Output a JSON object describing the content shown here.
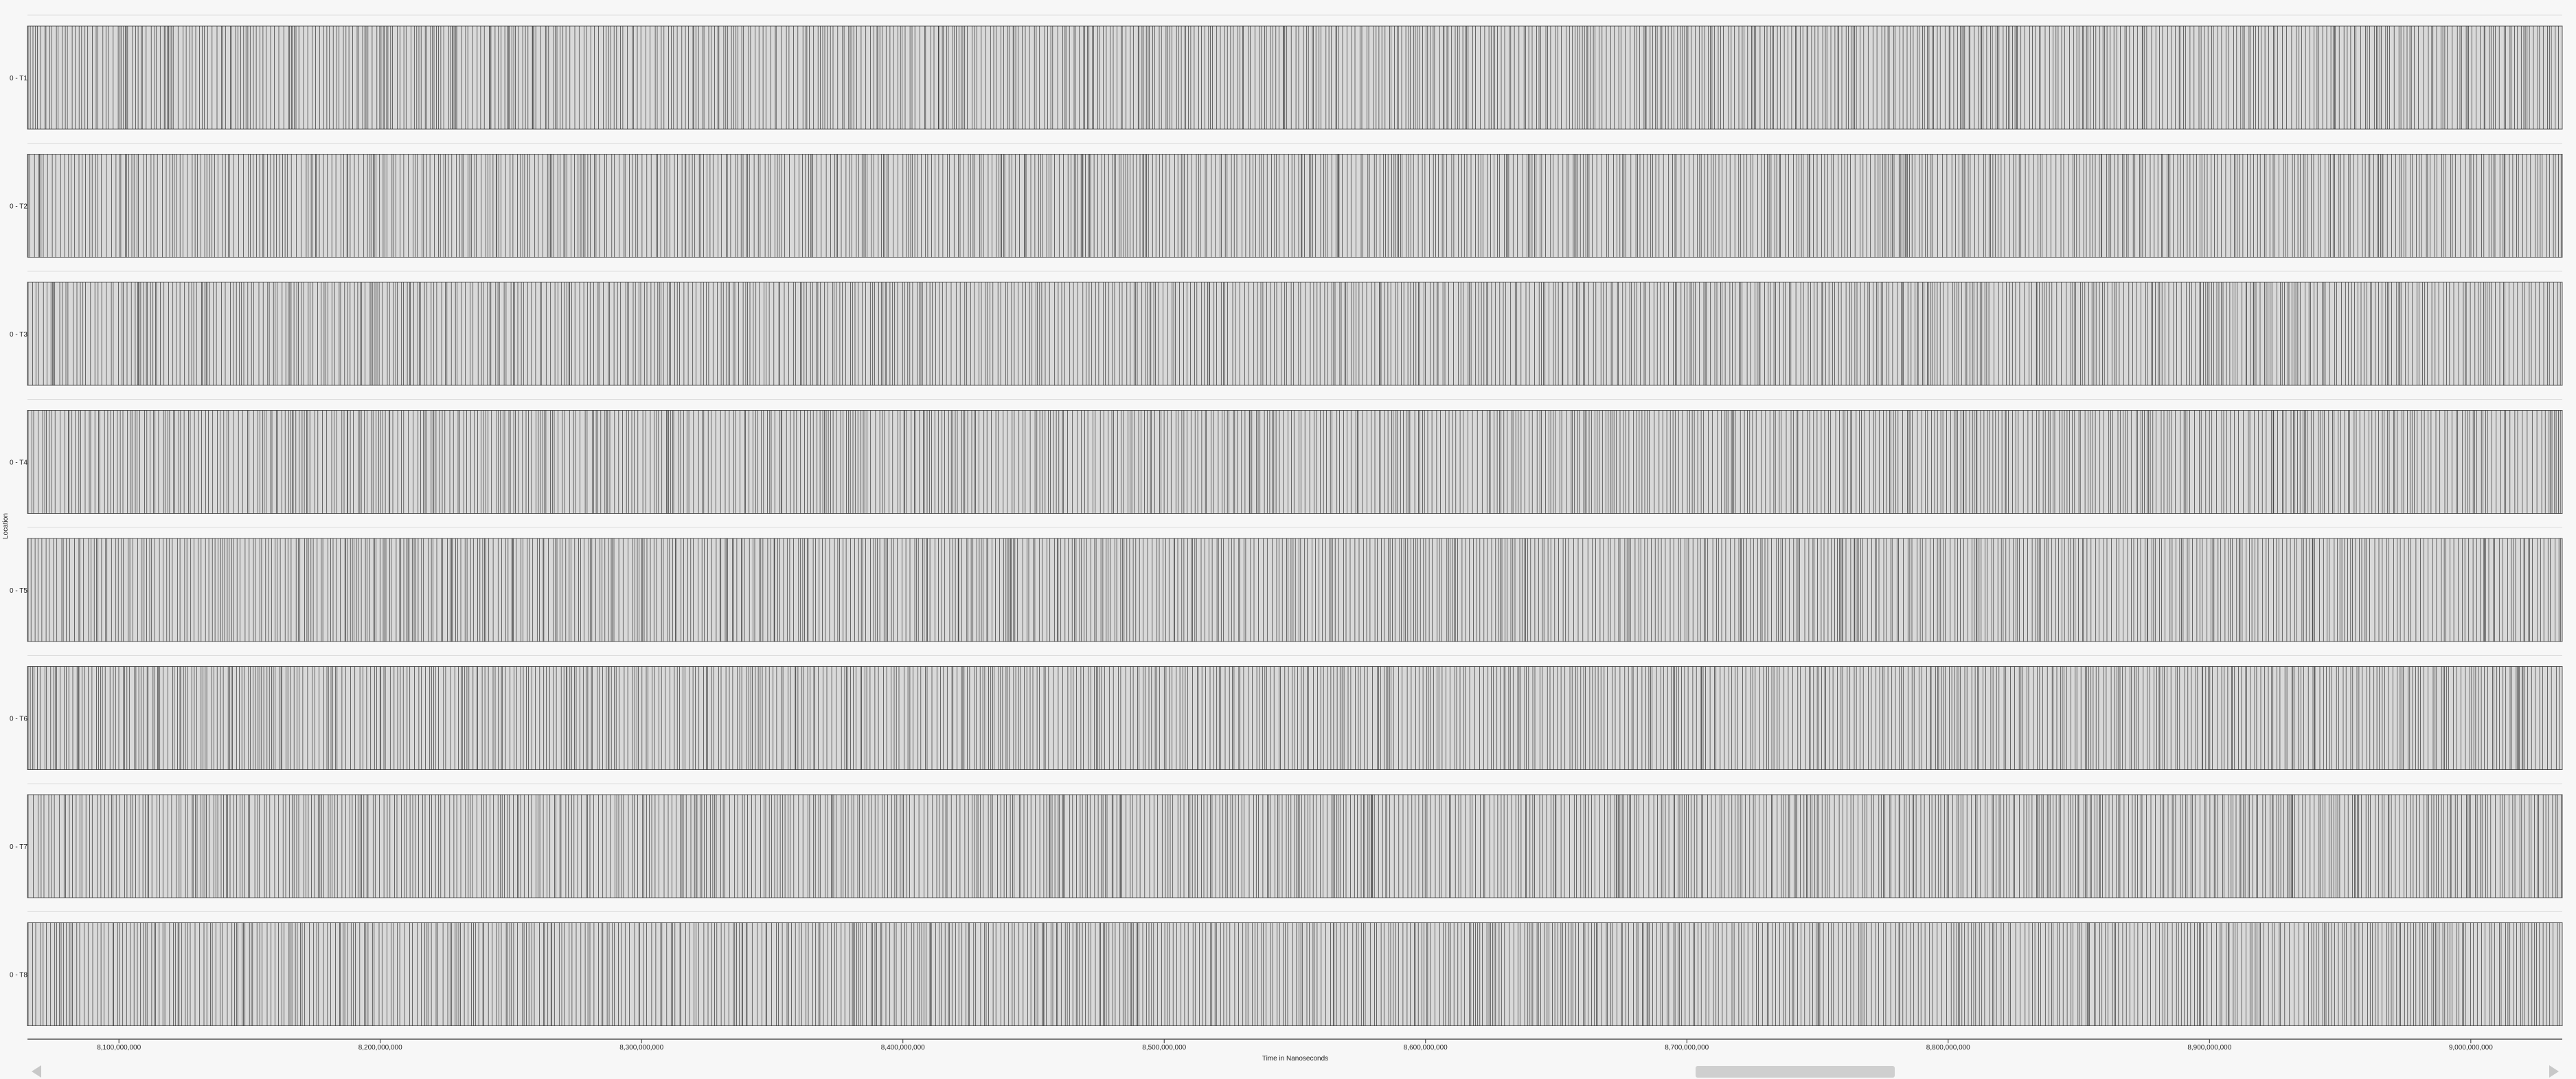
{
  "app": {
    "view": "Location timeline"
  },
  "axes": {
    "y_title": "Location",
    "x_title": "Time in Nanoseconds"
  },
  "chart_data": {
    "type": "timeline",
    "xlabel": "Time in Nanoseconds",
    "ylabel": "Location",
    "xlim": [
      8065000000,
      9035000000
    ],
    "x_ticks": [
      {
        "value": 8100000000,
        "label": "8,100,000,000"
      },
      {
        "value": 8200000000,
        "label": "8,200,000,000"
      },
      {
        "value": 8300000000,
        "label": "8,300,000,000"
      },
      {
        "value": 8400000000,
        "label": "8,400,000,000"
      },
      {
        "value": 8500000000,
        "label": "8,500,000,000"
      },
      {
        "value": 8600000000,
        "label": "8,600,000,000"
      },
      {
        "value": 8700000000,
        "label": "8,700,000,000"
      },
      {
        "value": 8800000000,
        "label": "8,800,000,000"
      },
      {
        "value": 8900000000,
        "label": "8,900,000,000"
      },
      {
        "value": 9000000000,
        "label": "9,000,000,000"
      }
    ],
    "rows": [
      "0 - T1",
      "0 - T2",
      "0 - T3",
      "0 - T4",
      "0 - T5",
      "0 - T6",
      "0 - T7",
      "0 - T8"
    ],
    "event_color": "#1a1a1a",
    "band_fill": "#d9d9d9"
  },
  "scrollbar": {
    "left_arrow_icon": "triangle-left-icon",
    "right_arrow_icon": "triangle-right-icon",
    "thumb_position_fraction": 0.66
  }
}
